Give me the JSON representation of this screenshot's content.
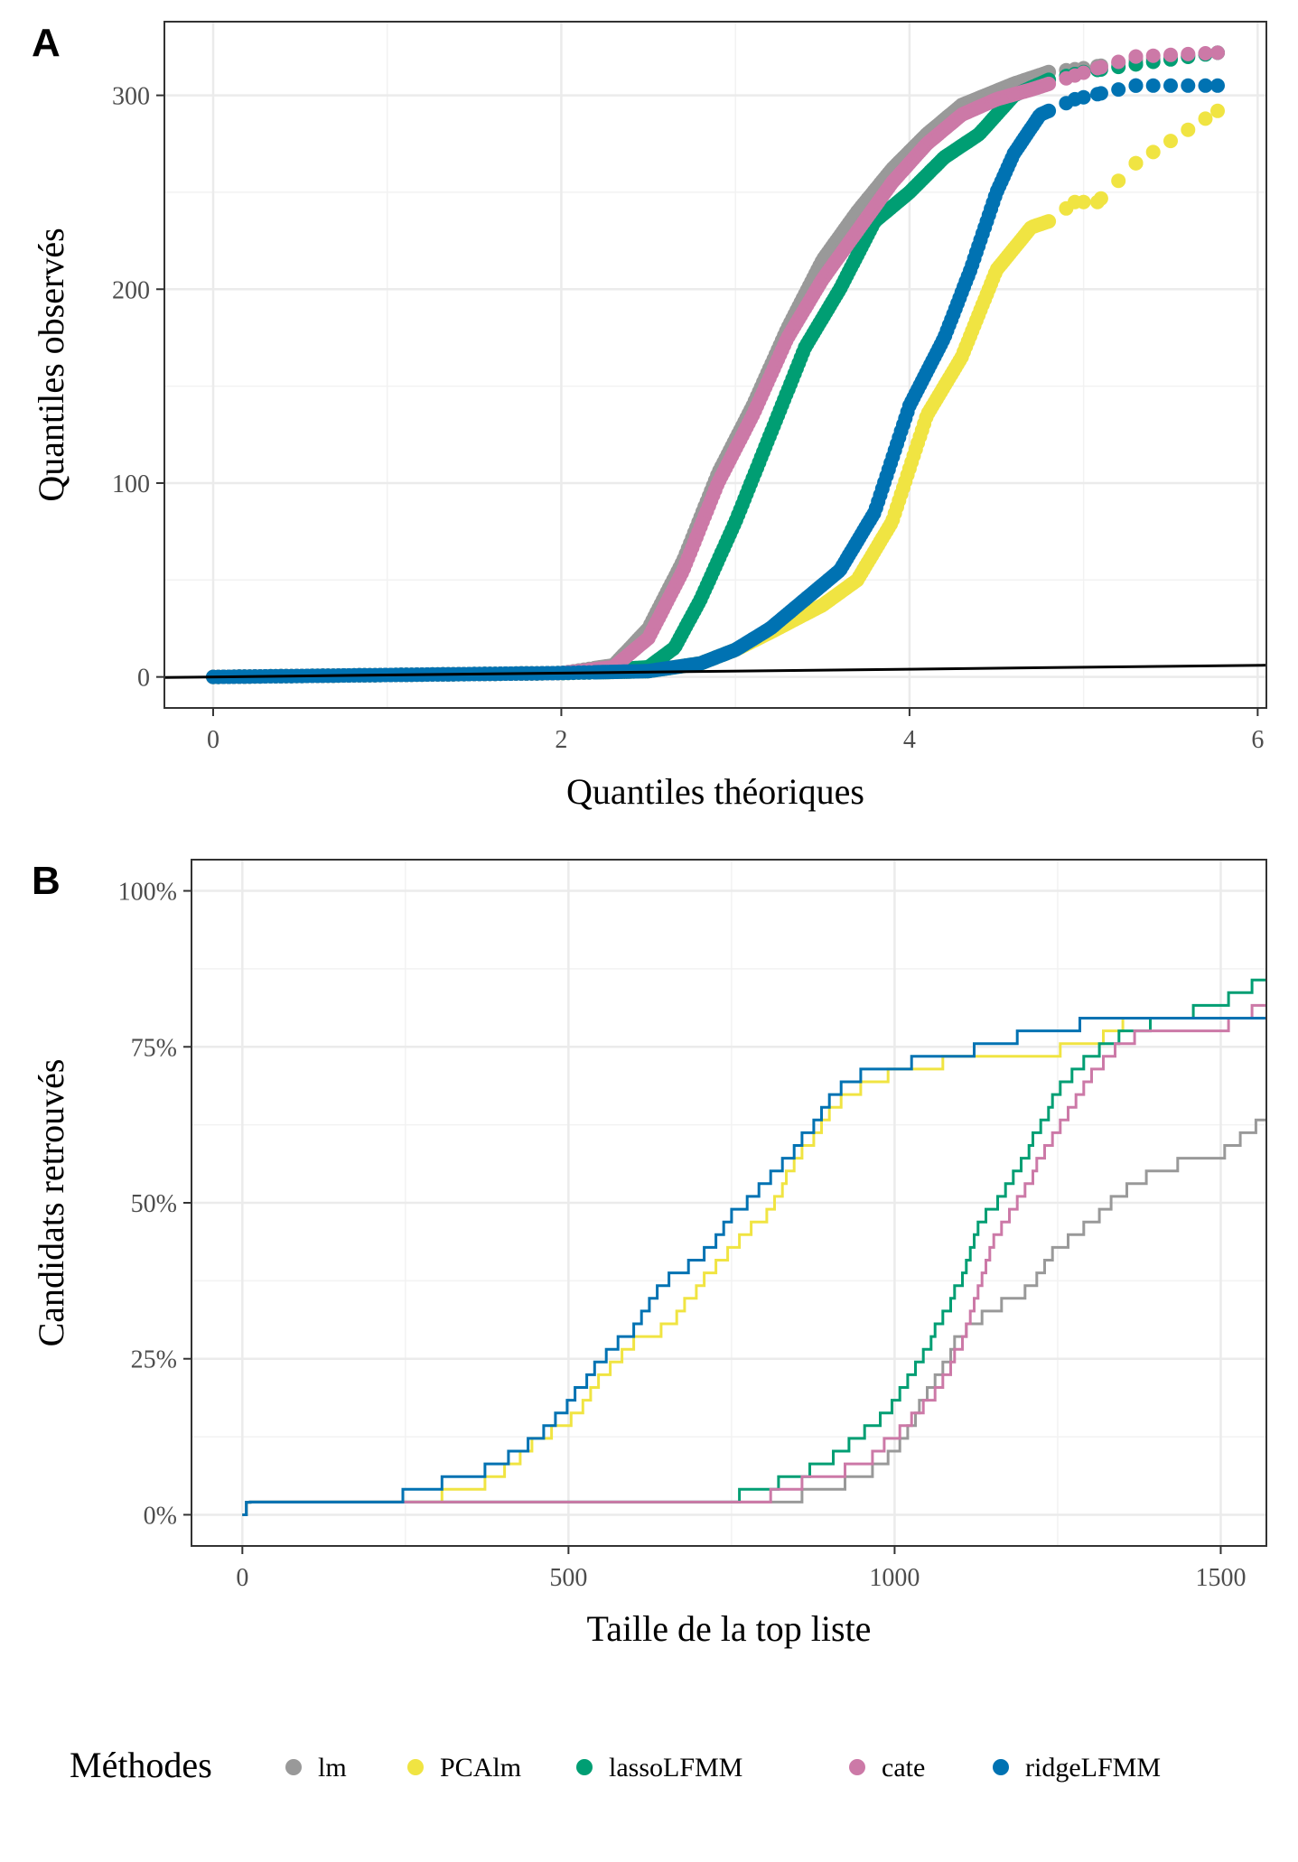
{
  "chart_data": [
    {
      "panel": "A",
      "type": "scatter",
      "xlabel": "Quantiles théoriques",
      "ylabel": "Quantiles observés",
      "xlim": [
        -0.28,
        6.05
      ],
      "ylim": [
        -16,
        338
      ],
      "x_ticks": [
        0,
        2,
        4,
        6
      ],
      "y_ticks": [
        0,
        100,
        200,
        300
      ],
      "grid": true,
      "reference_line": {
        "slope": 1,
        "intercept": 0
      },
      "series": [
        {
          "name": "lm",
          "color": "#999999",
          "anchors": [
            [
              0,
              0
            ],
            [
              1,
              1
            ],
            [
              2,
              2
            ],
            [
              2.3,
              6
            ],
            [
              2.5,
              25
            ],
            [
              2.7,
              60
            ],
            [
              2.9,
              105
            ],
            [
              3.1,
              140
            ],
            [
              3.3,
              180
            ],
            [
              3.5,
              215
            ],
            [
              3.7,
              240
            ],
            [
              3.9,
              262
            ],
            [
              4.1,
              280
            ],
            [
              4.3,
              295
            ],
            [
              4.6,
              306
            ],
            [
              4.8,
              312
            ],
            [
              5.0,
              314
            ],
            [
              5.3,
              318
            ],
            [
              5.77,
              322
            ]
          ]
        },
        {
          "name": "PCAlm",
          "color": "#F0E442",
          "anchors": [
            [
              0,
              0
            ],
            [
              1,
              1
            ],
            [
              2,
              2
            ],
            [
              2.5,
              3
            ],
            [
              2.8,
              7
            ],
            [
              3.0,
              14
            ],
            [
              3.2,
              23
            ],
            [
              3.5,
              37
            ],
            [
              3.7,
              50
            ],
            [
              3.9,
              80
            ],
            [
              4.1,
              135
            ],
            [
              4.3,
              165
            ],
            [
              4.5,
              210
            ],
            [
              4.7,
              232
            ],
            [
              4.8,
              235
            ],
            [
              4.95,
              245
            ],
            [
              5.08,
              245
            ],
            [
              5.3,
              265
            ],
            [
              5.77,
              292
            ]
          ]
        },
        {
          "name": "lassoLFMM",
          "color": "#009E73",
          "anchors": [
            [
              0,
              0
            ],
            [
              1,
              1
            ],
            [
              2,
              2
            ],
            [
              2.5,
              5
            ],
            [
              2.65,
              15
            ],
            [
              2.8,
              40
            ],
            [
              3.0,
              80
            ],
            [
              3.2,
              125
            ],
            [
              3.4,
              170
            ],
            [
              3.6,
              200
            ],
            [
              3.8,
              235
            ],
            [
              4.0,
              250
            ],
            [
              4.2,
              268
            ],
            [
              4.4,
              280
            ],
            [
              4.6,
              300
            ],
            [
              4.8,
              308
            ],
            [
              5.0,
              312
            ],
            [
              5.3,
              316
            ],
            [
              5.77,
              322
            ]
          ]
        },
        {
          "name": "cate",
          "color": "#CC79A7",
          "anchors": [
            [
              0,
              0
            ],
            [
              1,
              1
            ],
            [
              2,
              2
            ],
            [
              2.3,
              5
            ],
            [
              2.5,
              20
            ],
            [
              2.7,
              55
            ],
            [
              2.9,
              100
            ],
            [
              3.1,
              135
            ],
            [
              3.3,
              175
            ],
            [
              3.5,
              205
            ],
            [
              3.7,
              230
            ],
            [
              3.9,
              255
            ],
            [
              4.1,
              275
            ],
            [
              4.3,
              290
            ],
            [
              4.5,
              298
            ],
            [
              4.7,
              303
            ],
            [
              5.08,
              314
            ],
            [
              5.3,
              320
            ],
            [
              5.77,
              322
            ]
          ]
        },
        {
          "name": "ridgeLFMM",
          "color": "#0072B2",
          "anchors": [
            [
              0,
              0
            ],
            [
              1,
              1
            ],
            [
              2,
              2
            ],
            [
              2.5,
              3
            ],
            [
              2.8,
              7
            ],
            [
              3.0,
              14
            ],
            [
              3.2,
              25
            ],
            [
              3.4,
              40
            ],
            [
              3.6,
              55
            ],
            [
              3.8,
              85
            ],
            [
              4.0,
              140
            ],
            [
              4.2,
              175
            ],
            [
              4.35,
              210
            ],
            [
              4.5,
              250
            ],
            [
              4.6,
              270
            ],
            [
              4.75,
              290
            ],
            [
              4.95,
              298
            ],
            [
              5.3,
              305
            ],
            [
              5.77,
              305
            ]
          ]
        }
      ]
    },
    {
      "panel": "B",
      "type": "line",
      "xlabel": "Taille de la top liste",
      "ylabel": "Candidats retrouvés",
      "xlim": [
        -78,
        1570
      ],
      "ylim": [
        -0.05,
        1.05
      ],
      "x_ticks": [
        0,
        500,
        1000,
        1500
      ],
      "y_ticks": [
        0,
        0.25,
        0.5,
        0.75,
        1.0
      ],
      "y_tick_labels": [
        "0%",
        "25%",
        "50%",
        "75%",
        "100%"
      ],
      "grid": true,
      "series": [
        {
          "name": "lm",
          "color": "#999999",
          "anchors": [
            [
              0,
              0.02
            ],
            [
              800,
              0.02
            ],
            [
              850,
              0.03
            ],
            [
              950,
              0.06
            ],
            [
              1000,
              0.1
            ],
            [
              1050,
              0.2
            ],
            [
              1100,
              0.29
            ],
            [
              1150,
              0.33
            ],
            [
              1200,
              0.36
            ],
            [
              1250,
              0.43
            ],
            [
              1300,
              0.47
            ],
            [
              1350,
              0.52
            ],
            [
              1400,
              0.55
            ],
            [
              1450,
              0.57
            ],
            [
              1500,
              0.58
            ],
            [
              1570,
              0.64
            ]
          ]
        },
        {
          "name": "PCAlm",
          "color": "#F0E442",
          "anchors": [
            [
              0,
              0.02
            ],
            [
              250,
              0.02
            ],
            [
              300,
              0.03
            ],
            [
              350,
              0.04
            ],
            [
              400,
              0.07
            ],
            [
              450,
              0.12
            ],
            [
              500,
              0.15
            ],
            [
              550,
              0.22
            ],
            [
              600,
              0.28
            ],
            [
              650,
              0.3
            ],
            [
              700,
              0.37
            ],
            [
              750,
              0.43
            ],
            [
              800,
              0.48
            ],
            [
              850,
              0.57
            ],
            [
              900,
              0.65
            ],
            [
              950,
              0.69
            ],
            [
              1000,
              0.71
            ],
            [
              1050,
              0.72
            ],
            [
              1100,
              0.73
            ],
            [
              1200,
              0.74
            ],
            [
              1300,
              0.75
            ],
            [
              1350,
              0.79
            ],
            [
              1400,
              0.8
            ],
            [
              1570,
              0.8
            ]
          ]
        },
        {
          "name": "lassoLFMM",
          "color": "#009E73",
          "anchors": [
            [
              0,
              0.02
            ],
            [
              730,
              0.02
            ],
            [
              780,
              0.04
            ],
            [
              850,
              0.06
            ],
            [
              900,
              0.09
            ],
            [
              950,
              0.13
            ],
            [
              1000,
              0.18
            ],
            [
              1050,
              0.27
            ],
            [
              1100,
              0.38
            ],
            [
              1130,
              0.47
            ],
            [
              1150,
              0.49
            ],
            [
              1200,
              0.58
            ],
            [
              1250,
              0.68
            ],
            [
              1300,
              0.74
            ],
            [
              1350,
              0.77
            ],
            [
              1400,
              0.79
            ],
            [
              1500,
              0.82
            ],
            [
              1570,
              0.86
            ]
          ]
        },
        {
          "name": "cate",
          "color": "#CC79A7",
          "anchors": [
            [
              0,
              0.02
            ],
            [
              780,
              0.02
            ],
            [
              850,
              0.05
            ],
            [
              950,
              0.08
            ],
            [
              1000,
              0.13
            ],
            [
              1050,
              0.18
            ],
            [
              1100,
              0.27
            ],
            [
              1150,
              0.44
            ],
            [
              1200,
              0.53
            ],
            [
              1250,
              0.62
            ],
            [
              1300,
              0.71
            ],
            [
              1350,
              0.76
            ],
            [
              1400,
              0.78
            ],
            [
              1500,
              0.78
            ],
            [
              1570,
              0.82
            ]
          ]
        },
        {
          "name": "ridgeLFMM",
          "color": "#0072B2",
          "anchors": [
            [
              0,
              0.02
            ],
            [
              240,
              0.02
            ],
            [
              250,
              0.04
            ],
            [
              350,
              0.06
            ],
            [
              450,
              0.12
            ],
            [
              500,
              0.18
            ],
            [
              550,
              0.25
            ],
            [
              600,
              0.3
            ],
            [
              650,
              0.38
            ],
            [
              700,
              0.41
            ],
            [
              750,
              0.48
            ],
            [
              800,
              0.53
            ],
            [
              850,
              0.59
            ],
            [
              900,
              0.67
            ],
            [
              950,
              0.71
            ],
            [
              1000,
              0.72
            ],
            [
              1100,
              0.74
            ],
            [
              1200,
              0.77
            ],
            [
              1300,
              0.79
            ],
            [
              1400,
              0.8
            ],
            [
              1570,
              0.8
            ]
          ]
        }
      ]
    }
  ],
  "panels": {
    "a_label": "A",
    "b_label": "B"
  },
  "legend": {
    "title": "Méthodes",
    "items": [
      {
        "label": "lm",
        "color": "#999999"
      },
      {
        "label": "PCAlm",
        "color": "#F0E442"
      },
      {
        "label": "lassoLFMM",
        "color": "#009E73"
      },
      {
        "label": "cate",
        "color": "#CC79A7"
      },
      {
        "label": "ridgeLFMM",
        "color": "#0072B2"
      }
    ]
  }
}
